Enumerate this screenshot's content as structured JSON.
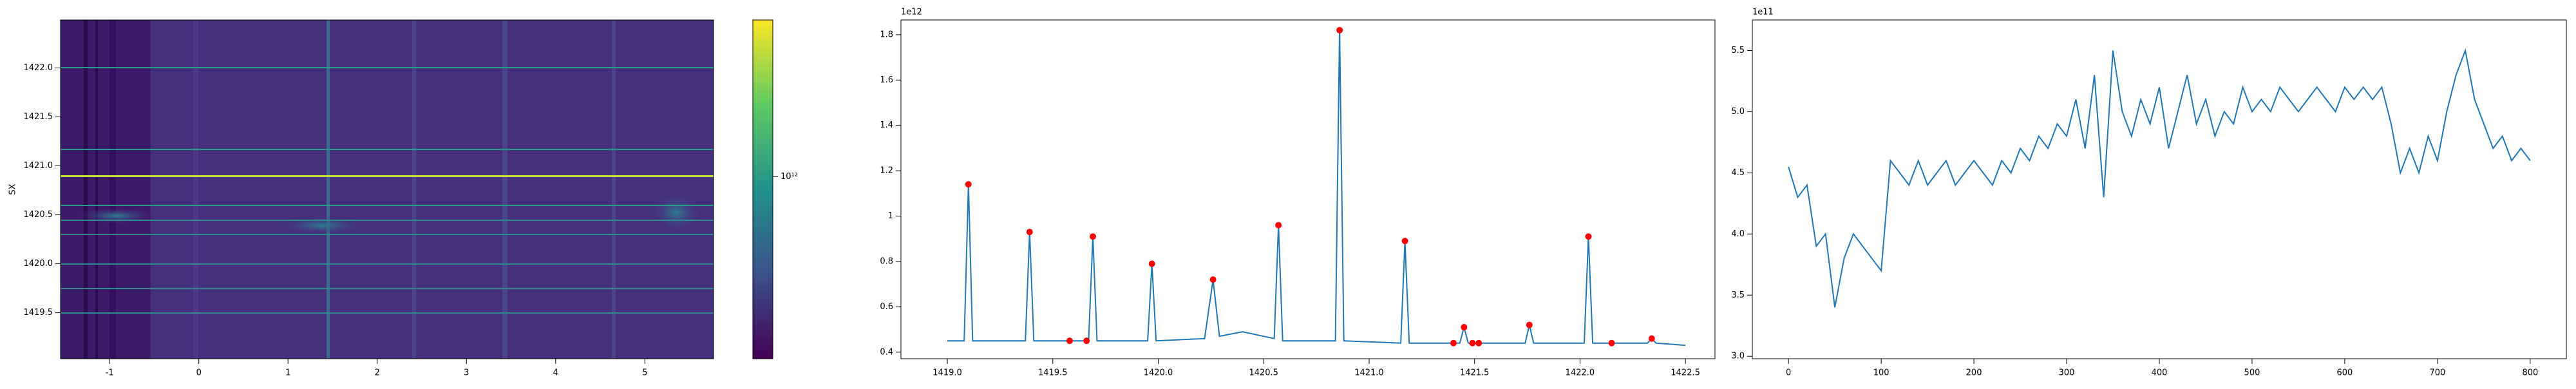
{
  "chart_data": [
    {
      "type": "heatmap",
      "ylabel": "SX",
      "xlim": [
        -1.55,
        5.77
      ],
      "ylim": [
        1419.03,
        1422.49
      ],
      "xticks": [
        -1,
        0,
        1,
        2,
        3,
        4,
        5
      ],
      "yticks": [
        {
          "value": 1419.5,
          "label": "1419.5"
        },
        {
          "value": 1420.0,
          "label": "1420.0"
        },
        {
          "value": 1420.5,
          "label": "1420.5"
        },
        {
          "value": 1421.0,
          "label": "1421.0"
        },
        {
          "value": 1421.5,
          "label": "1421.5"
        },
        {
          "value": 1422.0,
          "label": "1422.0"
        }
      ],
      "colorbar": {
        "scale": "log",
        "clim": [
          400000000000,
          2200000000000
        ],
        "ticks": [
          {
            "value": 1000000000000,
            "label": "10¹²"
          }
        ]
      }
    },
    {
      "type": "line",
      "offset_text": "1e12",
      "xlim": [
        1418.78,
        1422.64
      ],
      "ylim": [
        0.371,
        1.865
      ],
      "xticks": [
        {
          "value": 1419.0,
          "label": "1419.0"
        },
        {
          "value": 1419.5,
          "label": "1419.5"
        },
        {
          "value": 1420.0,
          "label": "1420.0"
        },
        {
          "value": 1420.5,
          "label": "1420.5"
        },
        {
          "value": 1421.0,
          "label": "1421.0"
        },
        {
          "value": 1421.5,
          "label": "1421.5"
        },
        {
          "value": 1422.0,
          "label": "1422.0"
        },
        {
          "value": 1422.5,
          "label": "1422.5"
        }
      ],
      "yticks": [
        0.4,
        0.6,
        0.8,
        1.0,
        1.2,
        1.4,
        1.6,
        1.8
      ],
      "x": [
        1419.0,
        1419.08,
        1419.1,
        1419.12,
        1419.37,
        1419.39,
        1419.41,
        1419.58,
        1419.67,
        1419.69,
        1419.71,
        1419.95,
        1419.97,
        1419.99,
        1420.22,
        1420.26,
        1420.29,
        1420.4,
        1420.55,
        1420.57,
        1420.59,
        1420.84,
        1420.86,
        1420.88,
        1421.15,
        1421.17,
        1421.19,
        1421.43,
        1421.45,
        1421.47,
        1421.74,
        1421.76,
        1421.78,
        1422.02,
        1422.04,
        1422.06,
        1422.32,
        1422.34,
        1422.36,
        1422.5
      ],
      "series": [
        {
          "color": "#1f77b4",
          "values": [
            0.45,
            0.45,
            1.14,
            0.45,
            0.45,
            0.93,
            0.45,
            0.45,
            0.45,
            0.91,
            0.45,
            0.45,
            0.79,
            0.45,
            0.46,
            0.72,
            0.47,
            0.49,
            0.46,
            0.96,
            0.45,
            0.45,
            1.82,
            0.45,
            0.44,
            0.89,
            0.44,
            0.44,
            0.51,
            0.44,
            0.44,
            0.52,
            0.44,
            0.44,
            0.91,
            0.44,
            0.44,
            0.46,
            0.44,
            0.43
          ]
        }
      ],
      "peaks": {
        "color": "#ff0000",
        "x": [
          1419.1,
          1419.39,
          1419.58,
          1419.66,
          1419.69,
          1419.97,
          1420.26,
          1420.57,
          1420.86,
          1421.17,
          1421.4,
          1421.45,
          1421.49,
          1421.52,
          1421.76,
          1422.04,
          1422.15,
          1422.34
        ],
        "values": [
          1.14,
          0.93,
          0.45,
          0.45,
          0.91,
          0.79,
          0.72,
          0.96,
          1.82,
          0.89,
          0.44,
          0.51,
          0.44,
          0.44,
          0.52,
          0.91,
          0.44,
          0.46
        ]
      }
    },
    {
      "type": "line",
      "offset_text": "1e11",
      "xlim": [
        -39,
        839
      ],
      "ylim": [
        2.98,
        5.75
      ],
      "xticks": [
        0,
        100,
        200,
        300,
        400,
        500,
        600,
        700,
        800
      ],
      "yticks": [
        {
          "value": 3.0,
          "label": "3.0"
        },
        3.5,
        {
          "value": 4.0,
          "label": "4.0"
        },
        4.5,
        {
          "value": 5.0,
          "label": "5.0"
        },
        5.5
      ],
      "x": [
        0,
        10,
        20,
        30,
        40,
        50,
        60,
        70,
        80,
        90,
        100,
        110,
        120,
        130,
        140,
        150,
        160,
        170,
        180,
        190,
        200,
        210,
        220,
        230,
        240,
        250,
        260,
        270,
        280,
        290,
        300,
        310,
        320,
        330,
        340,
        350,
        360,
        370,
        380,
        390,
        400,
        410,
        420,
        430,
        440,
        450,
        460,
        470,
        480,
        490,
        500,
        510,
        520,
        530,
        540,
        550,
        560,
        570,
        580,
        590,
        600,
        610,
        620,
        630,
        640,
        650,
        660,
        670,
        680,
        690,
        700,
        710,
        720,
        730,
        740,
        750,
        760,
        770,
        780,
        790,
        800
      ],
      "series": [
        {
          "color": "#1f77b4",
          "values": [
            4.55,
            4.3,
            4.4,
            3.9,
            4.0,
            3.4,
            3.8,
            4.0,
            3.9,
            3.8,
            3.7,
            4.6,
            4.5,
            4.4,
            4.6,
            4.4,
            4.5,
            4.6,
            4.4,
            4.5,
            4.6,
            4.5,
            4.4,
            4.6,
            4.5,
            4.7,
            4.6,
            4.8,
            4.7,
            4.9,
            4.8,
            5.1,
            4.7,
            5.3,
            4.3,
            5.5,
            5.0,
            4.8,
            5.1,
            4.9,
            5.2,
            4.7,
            5.0,
            5.3,
            4.9,
            5.1,
            4.8,
            5.0,
            4.9,
            5.2,
            5.0,
            5.1,
            5.0,
            5.2,
            5.1,
            5.0,
            5.1,
            5.2,
            5.1,
            5.0,
            5.2,
            5.1,
            5.2,
            5.1,
            5.2,
            4.9,
            4.5,
            4.7,
            4.5,
            4.8,
            4.6,
            5.0,
            5.3,
            5.5,
            5.1,
            4.9,
            4.7,
            4.8,
            4.6,
            4.7,
            4.6
          ]
        }
      ]
    }
  ]
}
